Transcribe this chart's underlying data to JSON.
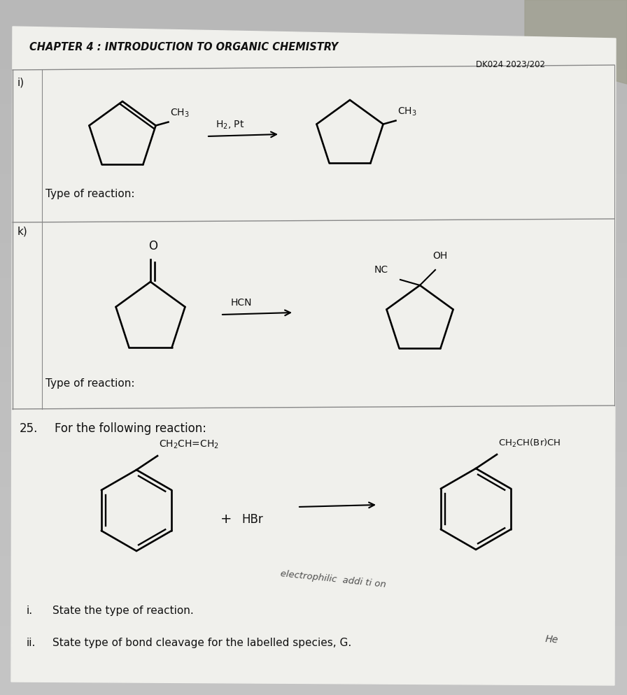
{
  "title": "CHAPTER 4 : INTRODUCTION TO ORGANIC CHEMISTRY",
  "subtitle": "DK024 2023/202",
  "bg_top_color": "#c8c8c8",
  "bg_bottom_color": "#b8b8b8",
  "paper_color": "#f0f0ec",
  "section_i_label": "i)",
  "section_k_label": "k)",
  "reagent_i": "H$_2$, Pt",
  "type_of_reaction": "Type of reaction:",
  "q25_label": "25.",
  "q25_text": "For the following reaction:",
  "q25_plus": "+",
  "q25_reagent": "HBr",
  "q25_i_num": "i.",
  "q25_i_text": "State the type of reaction.",
  "q25_i_answer": "electrophilic  addi ti on",
  "q25_ii_num": "ii.",
  "q25_ii_text": "State type of bond cleavage for the labelled species, G.",
  "q25_ii_answer": "He",
  "hcn_text": "HCN",
  "nc_text": "NC",
  "oh_text": "OH",
  "ch3_text": "CH$_3$",
  "ch2chbrch_text": "CH$_2$CH(Br)CH",
  "ch2chch2_text": "CH$_2$CH=CH$_2$",
  "line_color": "#888888",
  "text_color": "#111111"
}
